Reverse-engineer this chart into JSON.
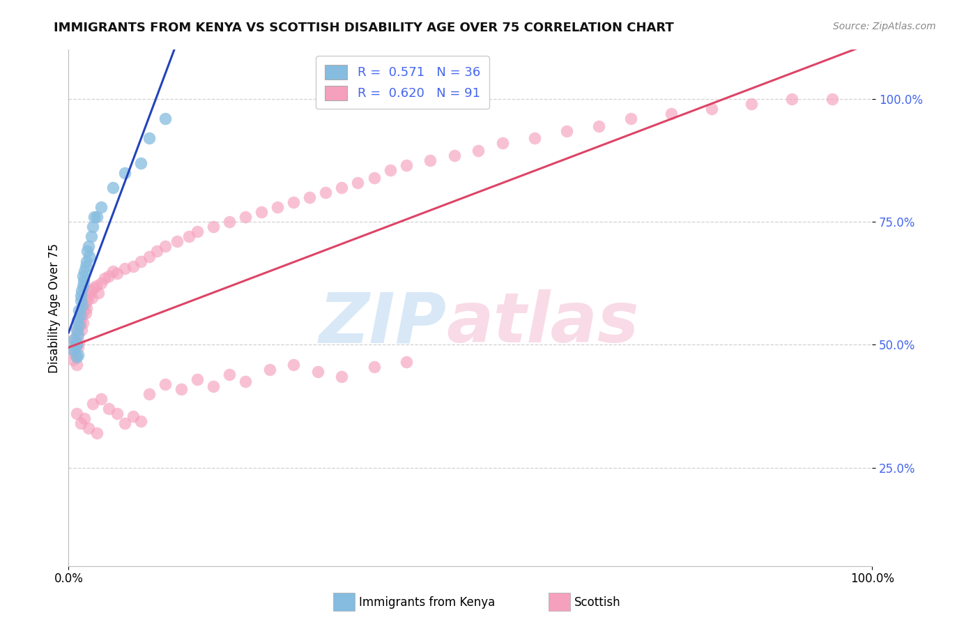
{
  "title": "IMMIGRANTS FROM KENYA VS SCOTTISH DISABILITY AGE OVER 75 CORRELATION CHART",
  "source": "Source: ZipAtlas.com",
  "ylabel": "Disability Age Over 75",
  "legend_label1": "Immigrants from Kenya",
  "legend_label2": "Scottish",
  "R1": 0.571,
  "N1": 36,
  "R2": 0.62,
  "N2": 91,
  "color_blue": "#85bce0",
  "color_pink": "#f5a0bc",
  "line_blue": "#2244bb",
  "line_pink": "#dd4466",
  "ytick_color": "#4466ee",
  "grid_color": "#cccccc",
  "title_fontsize": 13,
  "source_fontsize": 10,
  "tick_fontsize": 12,
  "legend_fontsize": 13,
  "blue_x": [
    0.005,
    0.007,
    0.008,
    0.009,
    0.01,
    0.01,
    0.01,
    0.011,
    0.012,
    0.012,
    0.013,
    0.013,
    0.014,
    0.015,
    0.015,
    0.016,
    0.017,
    0.018,
    0.018,
    0.019,
    0.02,
    0.021,
    0.022,
    0.023,
    0.025,
    0.026,
    0.028,
    0.03,
    0.032,
    0.035,
    0.04,
    0.055,
    0.07,
    0.09,
    0.1,
    0.12
  ],
  "blue_y": [
    0.49,
    0.51,
    0.495,
    0.505,
    0.53,
    0.5,
    0.475,
    0.55,
    0.52,
    0.48,
    0.54,
    0.57,
    0.56,
    0.59,
    0.6,
    0.61,
    0.58,
    0.62,
    0.64,
    0.63,
    0.65,
    0.66,
    0.67,
    0.69,
    0.7,
    0.68,
    0.72,
    0.74,
    0.76,
    0.76,
    0.78,
    0.82,
    0.85,
    0.87,
    0.92,
    0.96
  ],
  "pink_x": [
    0.005,
    0.006,
    0.007,
    0.008,
    0.009,
    0.01,
    0.01,
    0.011,
    0.012,
    0.013,
    0.014,
    0.015,
    0.016,
    0.017,
    0.018,
    0.019,
    0.02,
    0.021,
    0.022,
    0.023,
    0.025,
    0.027,
    0.029,
    0.031,
    0.034,
    0.037,
    0.04,
    0.045,
    0.05,
    0.055,
    0.06,
    0.07,
    0.08,
    0.09,
    0.1,
    0.11,
    0.12,
    0.135,
    0.15,
    0.16,
    0.18,
    0.2,
    0.22,
    0.24,
    0.26,
    0.28,
    0.3,
    0.32,
    0.34,
    0.36,
    0.38,
    0.4,
    0.42,
    0.45,
    0.48,
    0.51,
    0.54,
    0.58,
    0.62,
    0.66,
    0.7,
    0.75,
    0.8,
    0.85,
    0.9,
    0.95,
    0.01,
    0.015,
    0.02,
    0.025,
    0.03,
    0.035,
    0.04,
    0.05,
    0.06,
    0.07,
    0.08,
    0.09,
    0.1,
    0.12,
    0.14,
    0.16,
    0.18,
    0.2,
    0.22,
    0.25,
    0.28,
    0.31,
    0.34,
    0.38,
    0.42
  ],
  "pink_y": [
    0.49,
    0.47,
    0.51,
    0.48,
    0.5,
    0.52,
    0.46,
    0.53,
    0.495,
    0.505,
    0.54,
    0.55,
    0.53,
    0.56,
    0.545,
    0.57,
    0.58,
    0.565,
    0.575,
    0.59,
    0.6,
    0.61,
    0.595,
    0.615,
    0.62,
    0.605,
    0.625,
    0.635,
    0.64,
    0.65,
    0.645,
    0.655,
    0.66,
    0.67,
    0.68,
    0.69,
    0.7,
    0.71,
    0.72,
    0.73,
    0.74,
    0.75,
    0.76,
    0.77,
    0.78,
    0.79,
    0.8,
    0.81,
    0.82,
    0.83,
    0.84,
    0.855,
    0.865,
    0.875,
    0.885,
    0.895,
    0.91,
    0.92,
    0.935,
    0.945,
    0.96,
    0.97,
    0.98,
    0.99,
    1.0,
    1.0,
    0.36,
    0.34,
    0.35,
    0.33,
    0.38,
    0.32,
    0.39,
    0.37,
    0.36,
    0.34,
    0.355,
    0.345,
    0.4,
    0.42,
    0.41,
    0.43,
    0.415,
    0.44,
    0.425,
    0.45,
    0.46,
    0.445,
    0.435,
    0.455,
    0.465
  ]
}
